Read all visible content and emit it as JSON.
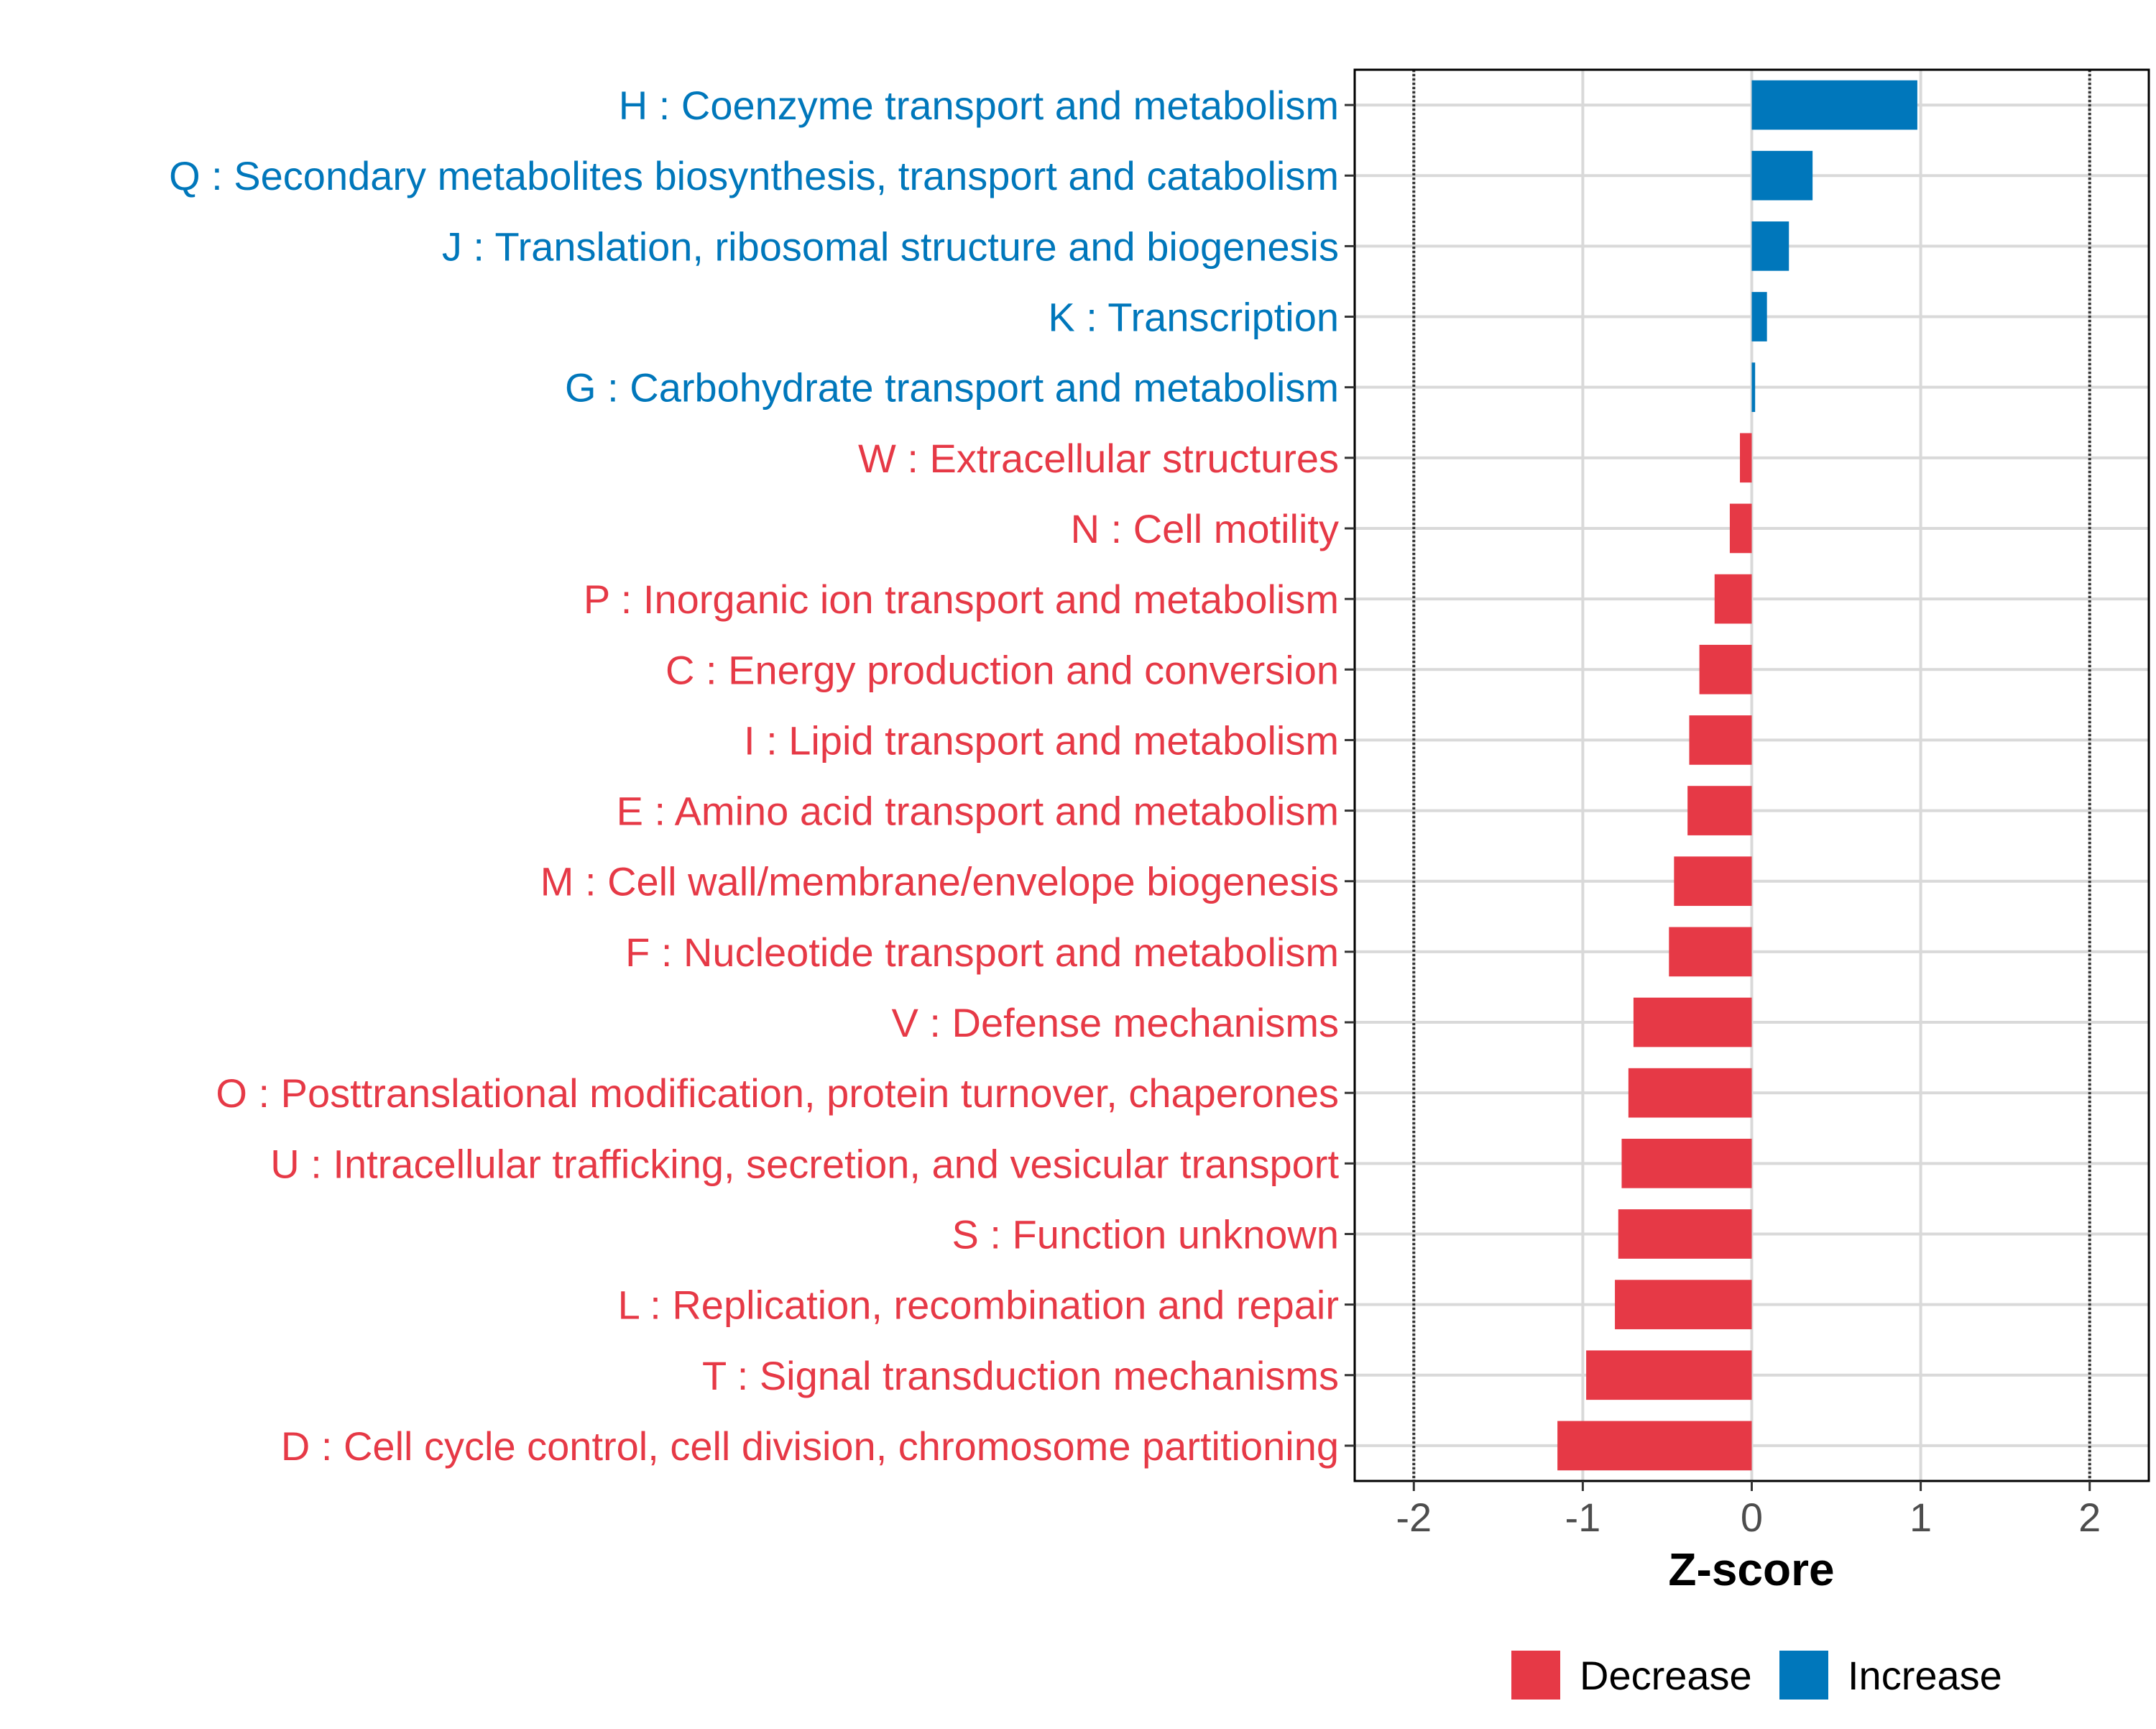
{
  "chart_data": {
    "type": "bar",
    "orientation": "horizontal",
    "title": "",
    "xlabel": "Z-score",
    "ylabel": "",
    "xlim": [
      -2.35,
      2.35
    ],
    "xticks": [
      -2,
      -1,
      0,
      1,
      2
    ],
    "xtick_labels": [
      "-2",
      "-1",
      "0",
      "1",
      "2"
    ],
    "reference_lines": [
      -2,
      2
    ],
    "grid": true,
    "colors": {
      "Increase": "#0077BB",
      "Decrease": "#E63946",
      "grid": "#D9D9D9",
      "axis": "#000000",
      "tick_text": "#4D4D4D"
    },
    "categories": [
      "H : Coenzyme transport and metabolism",
      "Q : Secondary metabolites biosynthesis, transport and catabolism",
      "J : Translation, ribosomal structure and biogenesis",
      "K : Transcription",
      "G : Carbohydrate transport and metabolism",
      "W : Extracellular structures",
      "N : Cell motility",
      "P : Inorganic ion transport and metabolism",
      "C : Energy production and conversion",
      "I : Lipid transport and metabolism",
      "E : Amino acid transport and metabolism",
      "M : Cell wall/membrane/envelope biogenesis",
      "F : Nucleotide transport and metabolism",
      "V : Defense mechanisms",
      "O : Posttranslational modification, protein turnover, chaperones",
      "U : Intracellular trafficking, secretion, and vesicular transport",
      "S : Function unknown",
      "L : Replication, recombination and repair",
      "T : Signal transduction mechanisms",
      "D : Cell cycle control, cell division, chromosome partitioning"
    ],
    "values": [
      0.98,
      0.36,
      0.22,
      0.09,
      0.02,
      -0.07,
      -0.13,
      -0.22,
      -0.31,
      -0.37,
      -0.38,
      -0.46,
      -0.49,
      -0.7,
      -0.73,
      -0.77,
      -0.79,
      -0.81,
      -0.98,
      -1.15
    ],
    "groups": [
      "Increase",
      "Increase",
      "Increase",
      "Increase",
      "Increase",
      "Decrease",
      "Decrease",
      "Decrease",
      "Decrease",
      "Decrease",
      "Decrease",
      "Decrease",
      "Decrease",
      "Decrease",
      "Decrease",
      "Decrease",
      "Decrease",
      "Decrease",
      "Decrease",
      "Decrease"
    ],
    "legend": {
      "placement": "bottom",
      "entries": [
        {
          "label": "Decrease",
          "color": "#E63946"
        },
        {
          "label": "Increase",
          "color": "#0077BB"
        }
      ]
    }
  }
}
